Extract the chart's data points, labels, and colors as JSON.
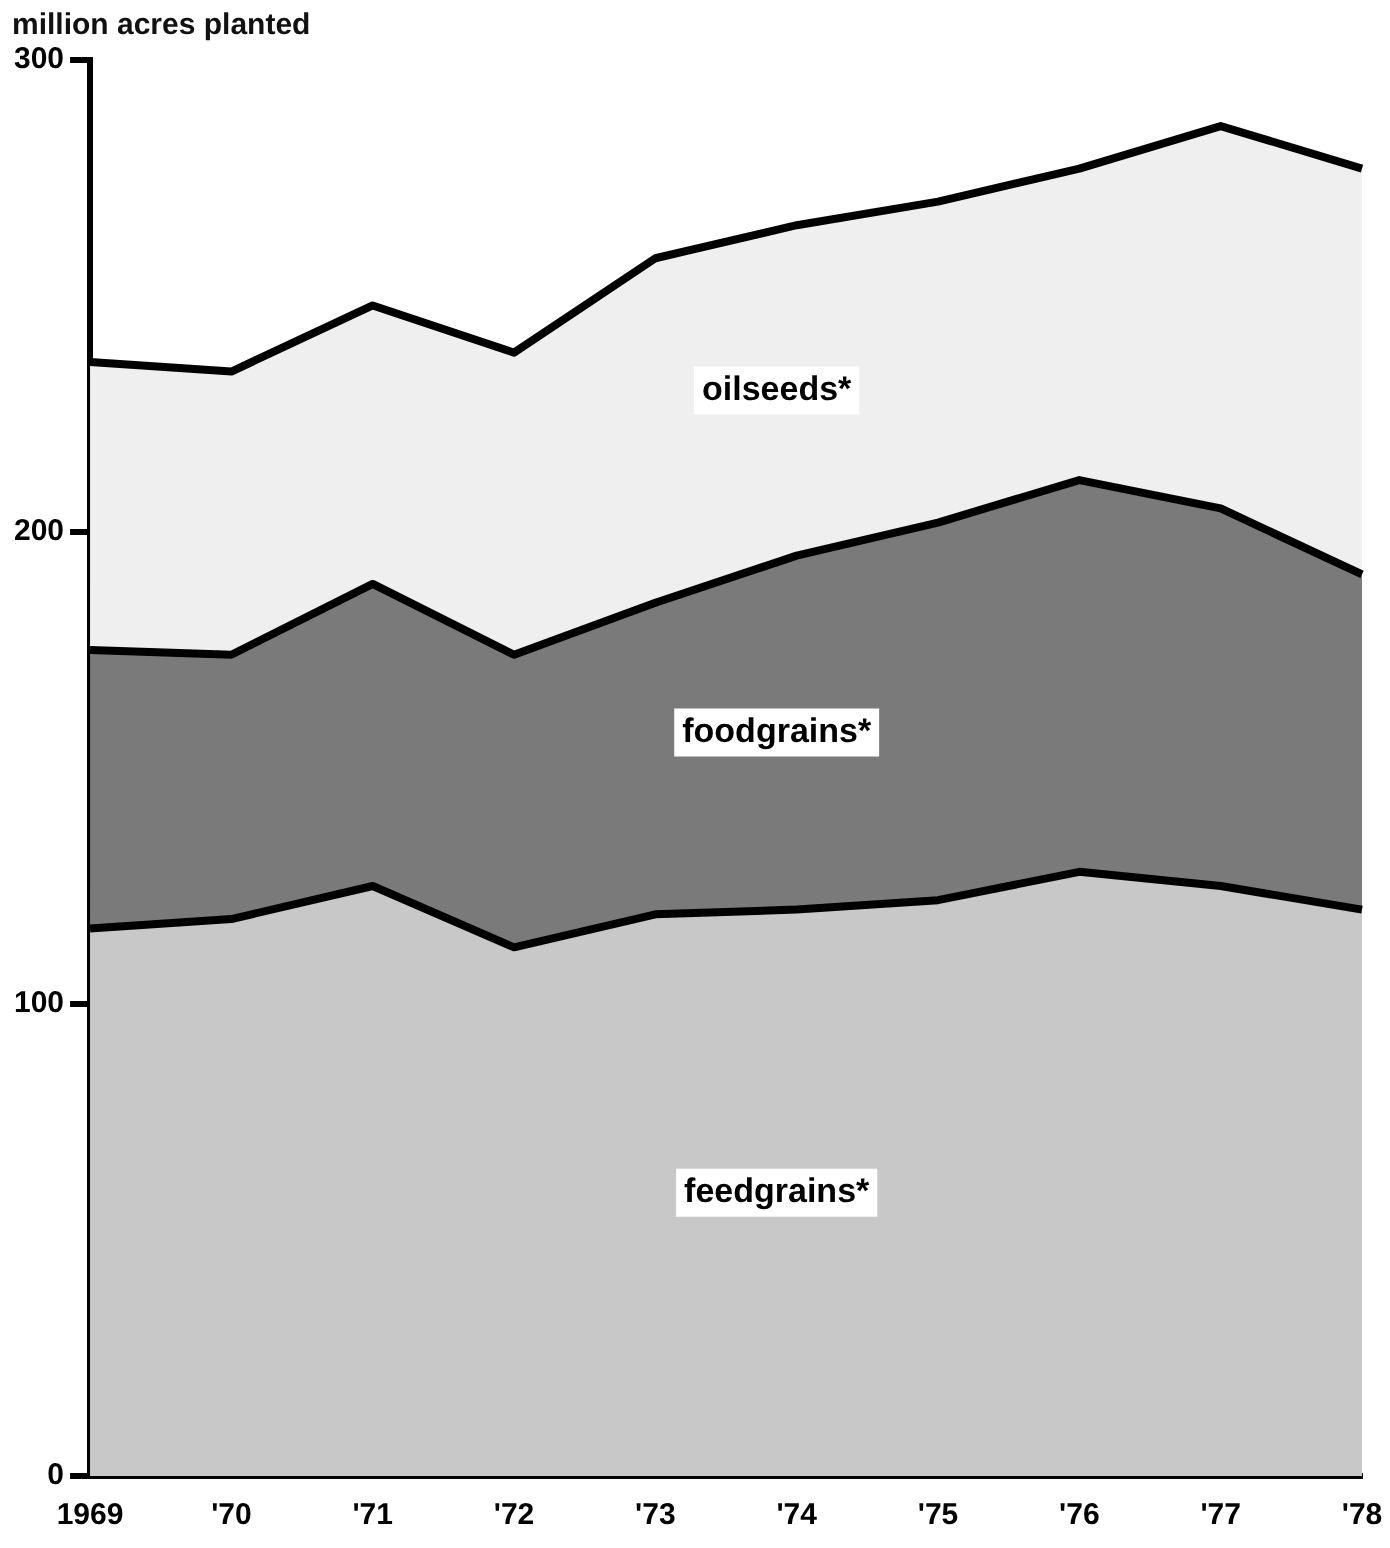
{
  "chart_data": {
    "type": "area",
    "stacked": true,
    "ylabel": "million acres planted",
    "categories": [
      "1969",
      "'70",
      "'71",
      "'72",
      "'73",
      "'74",
      "'75",
      "'76",
      "'77",
      "'78"
    ],
    "series": [
      {
        "name": "feedgrains*",
        "color": "#c8c8c8",
        "values": [
          116,
          118,
          125,
          112,
          119,
          120,
          122,
          128,
          125,
          120
        ]
      },
      {
        "name": "foodgrains*",
        "color": "#7a7a7a",
        "values": [
          59,
          56,
          64,
          62,
          66,
          75,
          80,
          83,
          80,
          71
        ]
      },
      {
        "name": "oilseeds*",
        "color": "#efefef",
        "values": [
          61,
          60,
          59,
          64,
          73,
          70,
          68,
          66,
          81,
          86
        ]
      }
    ],
    "ylim": [
      0,
      300
    ],
    "yticks": [
      0,
      100,
      200,
      300
    ],
    "grid": false,
    "legend": false
  }
}
